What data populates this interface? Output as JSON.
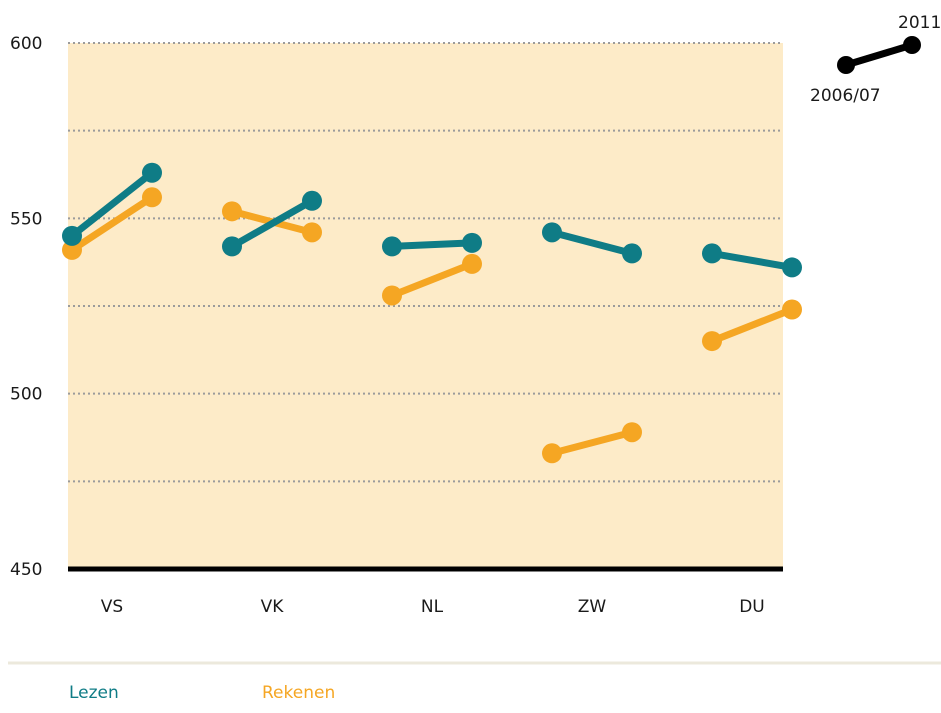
{
  "chart_data": {
    "type": "line",
    "categories": [
      "VS",
      "VK",
      "NL",
      "ZW",
      "DU"
    ],
    "x": [
      "2006/07",
      "2011"
    ],
    "series": [
      {
        "name": "Lezen",
        "color": "#0f7c86",
        "values": [
          [
            545,
            563
          ],
          [
            542,
            555
          ],
          [
            542,
            543
          ],
          [
            546,
            540
          ],
          [
            540,
            536
          ]
        ]
      },
      {
        "name": "Rekenen",
        "color": "#f5a623",
        "values": [
          [
            541,
            556
          ],
          [
            552,
            546
          ],
          [
            528,
            537
          ],
          [
            483,
            489
          ],
          [
            515,
            524
          ]
        ]
      }
    ],
    "ylim": [
      450,
      600
    ],
    "yticks": [
      450,
      500,
      550,
      600
    ],
    "grid": true,
    "legend": "bottom-left"
  },
  "key": {
    "start_label": "2006/07",
    "end_label": "2011"
  },
  "colors": {
    "plot_background": "#fdebc8",
    "axis": "#000000",
    "grid": "#9b9b9b"
  }
}
